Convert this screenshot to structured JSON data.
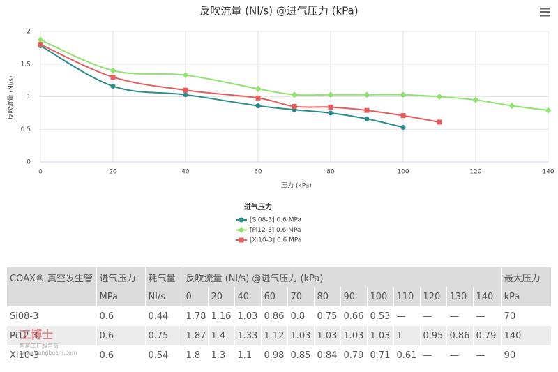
{
  "chart_data": {
    "type": "line",
    "title": "反吹流量 (Nl/s) @进气压力 (kPa)",
    "x_label": "压力 (kPa)",
    "y_label": "反吹流量 (Nl/s)",
    "legend_title": "进气压力",
    "xlim": [
      0,
      140
    ],
    "xticks": [
      0,
      20,
      40,
      60,
      80,
      100,
      120,
      140
    ],
    "ylim": [
      0,
      2
    ],
    "yticks": [
      0,
      0.5,
      1,
      1.5,
      2
    ],
    "grid": true,
    "smooth": true,
    "series": [
      {
        "name": "[Si08-3] 0.6 MPa",
        "color": "#2b8c8c",
        "marker": "circle",
        "x": [
          0,
          20,
          40,
          60,
          70,
          80,
          90,
          100
        ],
        "values": [
          1.78,
          1.16,
          1.03,
          0.86,
          0.8,
          0.75,
          0.66,
          0.53
        ]
      },
      {
        "name": "[Pi12-3] 0.6 MPa",
        "color": "#8fe36e",
        "marker": "diamond",
        "x": [
          0,
          20,
          40,
          60,
          70,
          80,
          90,
          100,
          110,
          120,
          130,
          140
        ],
        "values": [
          1.87,
          1.4,
          1.33,
          1.12,
          1.03,
          1.03,
          1.03,
          1.03,
          1,
          0.95,
          0.86,
          0.79
        ]
      },
      {
        "name": "[Xi10-3] 0.6 MPa",
        "color": "#e85b5b",
        "marker": "square",
        "x": [
          0,
          20,
          40,
          60,
          70,
          80,
          90,
          100,
          110
        ],
        "values": [
          1.8,
          1.3,
          1.1,
          0.98,
          0.85,
          0.84,
          0.79,
          0.71,
          0.61
        ]
      }
    ]
  },
  "table": {
    "header": [
      [
        "COAX® 真空发生管",
        "进气压力",
        "耗气量",
        "反吹流量 (Nl/s) @进气压力 (kPa)",
        "最大压力"
      ],
      [
        "MPa",
        "Nl/s",
        "0",
        "20",
        "40",
        "60",
        "70",
        "80",
        "90",
        "100",
        "110",
        "120",
        "130",
        "140",
        "kPa"
      ]
    ],
    "rows": [
      [
        "Si08-3",
        "0.6",
        "0.44",
        "1.78",
        "1.16",
        "1.03",
        "0.86",
        "0.8",
        "0.75",
        "0.66",
        "0.53",
        "—",
        "—",
        "—",
        "—",
        "70"
      ],
      [
        "Pi12-3",
        "0.6",
        "0.75",
        "1.87",
        "1.4",
        "1.33",
        "1.12",
        "1.03",
        "1.03",
        "1.03",
        "1.03",
        "1",
        "0.95",
        "0.86",
        "0.79",
        "140"
      ],
      [
        "Xi10-3",
        "0.6",
        "0.54",
        "1.8",
        "1.3",
        "1.1",
        "0.98",
        "0.85",
        "0.84",
        "0.79",
        "0.71",
        "0.61",
        "—",
        "—",
        "—",
        "90"
      ]
    ]
  },
  "watermark": {
    "name": "工博士",
    "tagline": "智能工厂服务商",
    "url": "www.gongboshi.com"
  }
}
